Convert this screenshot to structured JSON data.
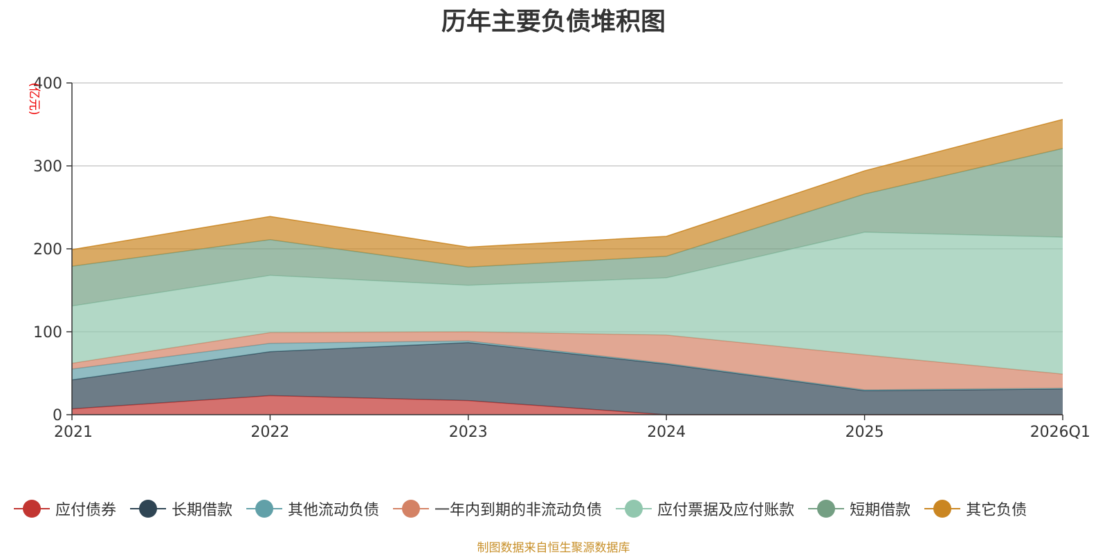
{
  "chart_data": {
    "type": "area",
    "stacked": true,
    "title": "历年主要负债堆积图",
    "ylabel": "(亿元)",
    "xlabel": "",
    "ylim": [
      0,
      400
    ],
    "yticks": [
      "0",
      "100",
      "200",
      "300",
      "400"
    ],
    "categories": [
      "2021",
      "2022",
      "2023",
      "2024",
      "2025",
      "2026Q1"
    ],
    "series": [
      {
        "name": "应付债券",
        "color": "#c23531",
        "values": [
          7,
          23,
          17,
          0,
          0,
          0
        ]
      },
      {
        "name": "长期借款",
        "color": "#2f4554",
        "values": [
          35,
          53,
          70,
          61,
          29,
          31
        ]
      },
      {
        "name": "其他流动负债",
        "color": "#61a0a8",
        "values": [
          13,
          10,
          2,
          1,
          1,
          1
        ]
      },
      {
        "name": "一年内到期的非流动负债",
        "color": "#d48265",
        "values": [
          7,
          13,
          11,
          34,
          42,
          17
        ]
      },
      {
        "name": "应付票据及应付账款",
        "color": "#91c7ae",
        "values": [
          69,
          69,
          56,
          69,
          148,
          165
        ]
      },
      {
        "name": "短期借款",
        "color": "#749f83",
        "values": [
          48,
          43,
          22,
          26,
          46,
          107
        ]
      },
      {
        "name": "其它负债",
        "color": "#ca8622",
        "values": [
          20,
          28,
          24,
          24,
          28,
          35
        ]
      }
    ],
    "grid": true,
    "legend_position": "bottom",
    "source_note": "制图数据来自恒生聚源数据库"
  }
}
